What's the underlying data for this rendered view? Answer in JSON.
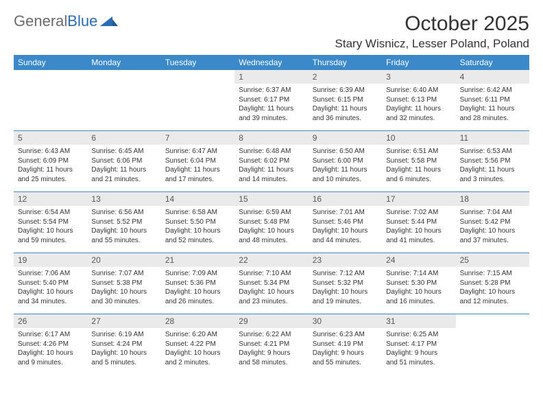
{
  "brand": {
    "part1": "General",
    "part2": "Blue"
  },
  "title": "October 2025",
  "location": "Stary Wisnicz, Lesser Poland, Poland",
  "colors": {
    "header_bg": "#3b89c9",
    "header_text": "#ffffff",
    "daynum_bg": "#eaeaea",
    "border": "#3b89c9",
    "text": "#333333"
  },
  "daynames": [
    "Sunday",
    "Monday",
    "Tuesday",
    "Wednesday",
    "Thursday",
    "Friday",
    "Saturday"
  ],
  "weeks": [
    [
      null,
      null,
      null,
      {
        "n": "1",
        "sr": "Sunrise: 6:37 AM",
        "ss": "Sunset: 6:17 PM",
        "d1": "Daylight: 11 hours",
        "d2": "and 39 minutes."
      },
      {
        "n": "2",
        "sr": "Sunrise: 6:39 AM",
        "ss": "Sunset: 6:15 PM",
        "d1": "Daylight: 11 hours",
        "d2": "and 36 minutes."
      },
      {
        "n": "3",
        "sr": "Sunrise: 6:40 AM",
        "ss": "Sunset: 6:13 PM",
        "d1": "Daylight: 11 hours",
        "d2": "and 32 minutes."
      },
      {
        "n": "4",
        "sr": "Sunrise: 6:42 AM",
        "ss": "Sunset: 6:11 PM",
        "d1": "Daylight: 11 hours",
        "d2": "and 28 minutes."
      }
    ],
    [
      {
        "n": "5",
        "sr": "Sunrise: 6:43 AM",
        "ss": "Sunset: 6:09 PM",
        "d1": "Daylight: 11 hours",
        "d2": "and 25 minutes."
      },
      {
        "n": "6",
        "sr": "Sunrise: 6:45 AM",
        "ss": "Sunset: 6:06 PM",
        "d1": "Daylight: 11 hours",
        "d2": "and 21 minutes."
      },
      {
        "n": "7",
        "sr": "Sunrise: 6:47 AM",
        "ss": "Sunset: 6:04 PM",
        "d1": "Daylight: 11 hours",
        "d2": "and 17 minutes."
      },
      {
        "n": "8",
        "sr": "Sunrise: 6:48 AM",
        "ss": "Sunset: 6:02 PM",
        "d1": "Daylight: 11 hours",
        "d2": "and 14 minutes."
      },
      {
        "n": "9",
        "sr": "Sunrise: 6:50 AM",
        "ss": "Sunset: 6:00 PM",
        "d1": "Daylight: 11 hours",
        "d2": "and 10 minutes."
      },
      {
        "n": "10",
        "sr": "Sunrise: 6:51 AM",
        "ss": "Sunset: 5:58 PM",
        "d1": "Daylight: 11 hours",
        "d2": "and 6 minutes."
      },
      {
        "n": "11",
        "sr": "Sunrise: 6:53 AM",
        "ss": "Sunset: 5:56 PM",
        "d1": "Daylight: 11 hours",
        "d2": "and 3 minutes."
      }
    ],
    [
      {
        "n": "12",
        "sr": "Sunrise: 6:54 AM",
        "ss": "Sunset: 5:54 PM",
        "d1": "Daylight: 10 hours",
        "d2": "and 59 minutes."
      },
      {
        "n": "13",
        "sr": "Sunrise: 6:56 AM",
        "ss": "Sunset: 5:52 PM",
        "d1": "Daylight: 10 hours",
        "d2": "and 55 minutes."
      },
      {
        "n": "14",
        "sr": "Sunrise: 6:58 AM",
        "ss": "Sunset: 5:50 PM",
        "d1": "Daylight: 10 hours",
        "d2": "and 52 minutes."
      },
      {
        "n": "15",
        "sr": "Sunrise: 6:59 AM",
        "ss": "Sunset: 5:48 PM",
        "d1": "Daylight: 10 hours",
        "d2": "and 48 minutes."
      },
      {
        "n": "16",
        "sr": "Sunrise: 7:01 AM",
        "ss": "Sunset: 5:46 PM",
        "d1": "Daylight: 10 hours",
        "d2": "and 44 minutes."
      },
      {
        "n": "17",
        "sr": "Sunrise: 7:02 AM",
        "ss": "Sunset: 5:44 PM",
        "d1": "Daylight: 10 hours",
        "d2": "and 41 minutes."
      },
      {
        "n": "18",
        "sr": "Sunrise: 7:04 AM",
        "ss": "Sunset: 5:42 PM",
        "d1": "Daylight: 10 hours",
        "d2": "and 37 minutes."
      }
    ],
    [
      {
        "n": "19",
        "sr": "Sunrise: 7:06 AM",
        "ss": "Sunset: 5:40 PM",
        "d1": "Daylight: 10 hours",
        "d2": "and 34 minutes."
      },
      {
        "n": "20",
        "sr": "Sunrise: 7:07 AM",
        "ss": "Sunset: 5:38 PM",
        "d1": "Daylight: 10 hours",
        "d2": "and 30 minutes."
      },
      {
        "n": "21",
        "sr": "Sunrise: 7:09 AM",
        "ss": "Sunset: 5:36 PM",
        "d1": "Daylight: 10 hours",
        "d2": "and 26 minutes."
      },
      {
        "n": "22",
        "sr": "Sunrise: 7:10 AM",
        "ss": "Sunset: 5:34 PM",
        "d1": "Daylight: 10 hours",
        "d2": "and 23 minutes."
      },
      {
        "n": "23",
        "sr": "Sunrise: 7:12 AM",
        "ss": "Sunset: 5:32 PM",
        "d1": "Daylight: 10 hours",
        "d2": "and 19 minutes."
      },
      {
        "n": "24",
        "sr": "Sunrise: 7:14 AM",
        "ss": "Sunset: 5:30 PM",
        "d1": "Daylight: 10 hours",
        "d2": "and 16 minutes."
      },
      {
        "n": "25",
        "sr": "Sunrise: 7:15 AM",
        "ss": "Sunset: 5:28 PM",
        "d1": "Daylight: 10 hours",
        "d2": "and 12 minutes."
      }
    ],
    [
      {
        "n": "26",
        "sr": "Sunrise: 6:17 AM",
        "ss": "Sunset: 4:26 PM",
        "d1": "Daylight: 10 hours",
        "d2": "and 9 minutes."
      },
      {
        "n": "27",
        "sr": "Sunrise: 6:19 AM",
        "ss": "Sunset: 4:24 PM",
        "d1": "Daylight: 10 hours",
        "d2": "and 5 minutes."
      },
      {
        "n": "28",
        "sr": "Sunrise: 6:20 AM",
        "ss": "Sunset: 4:22 PM",
        "d1": "Daylight: 10 hours",
        "d2": "and 2 minutes."
      },
      {
        "n": "29",
        "sr": "Sunrise: 6:22 AM",
        "ss": "Sunset: 4:21 PM",
        "d1": "Daylight: 9 hours",
        "d2": "and 58 minutes."
      },
      {
        "n": "30",
        "sr": "Sunrise: 6:23 AM",
        "ss": "Sunset: 4:19 PM",
        "d1": "Daylight: 9 hours",
        "d2": "and 55 minutes."
      },
      {
        "n": "31",
        "sr": "Sunrise: 6:25 AM",
        "ss": "Sunset: 4:17 PM",
        "d1": "Daylight: 9 hours",
        "d2": "and 51 minutes."
      },
      null
    ]
  ]
}
